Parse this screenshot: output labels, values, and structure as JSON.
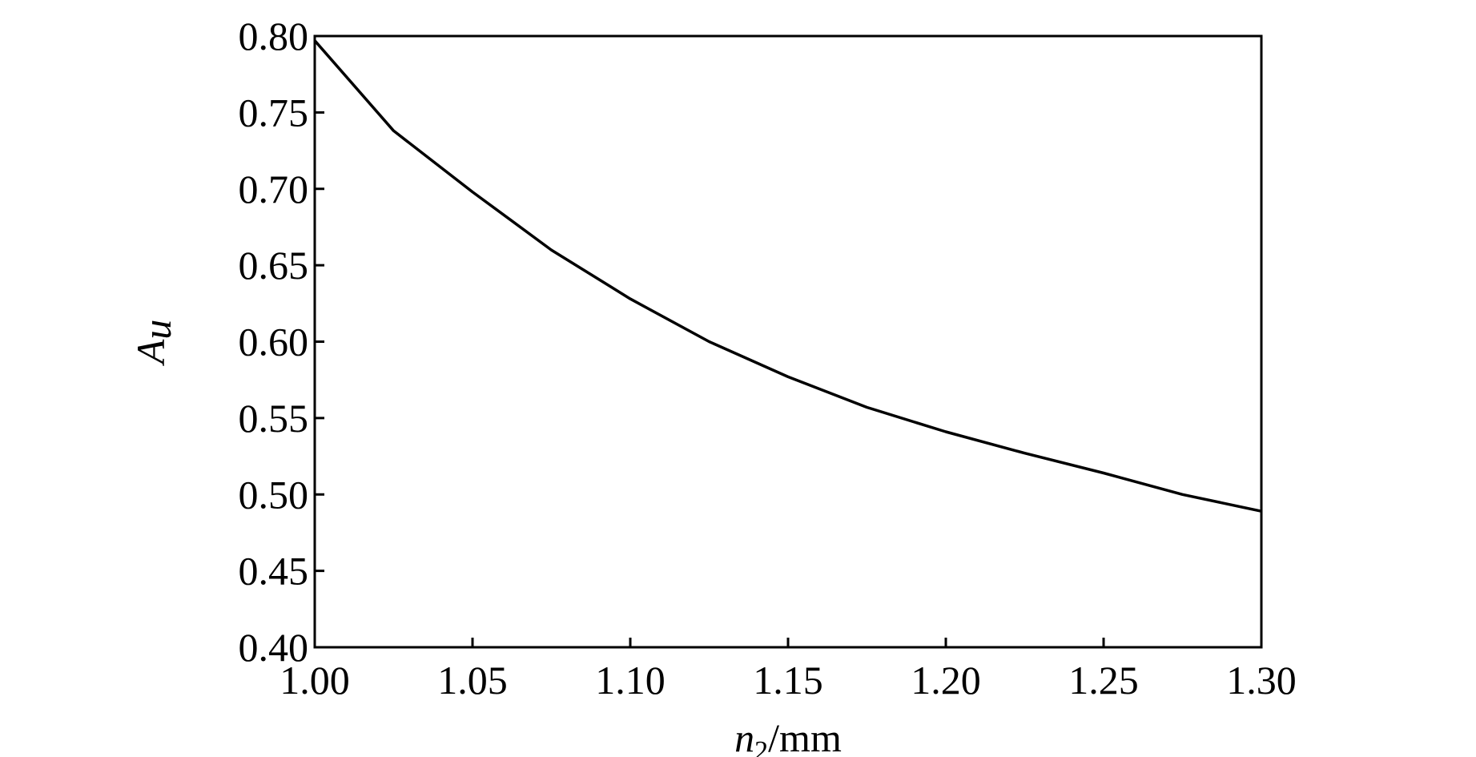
{
  "chart_data": {
    "type": "line",
    "title": "",
    "xlabel": {
      "var": "n",
      "sub": "2",
      "unit": "/mm"
    },
    "ylabel": {
      "var": "A",
      "sub": "u"
    },
    "xlim": [
      1.0,
      1.3
    ],
    "ylim": [
      0.4,
      0.8
    ],
    "xticks": [
      1.0,
      1.05,
      1.1,
      1.15,
      1.2,
      1.25,
      1.3
    ],
    "xtick_labels": [
      "1.00",
      "1.05",
      "1.10",
      "1.15",
      "1.20",
      "1.25",
      "1.30"
    ],
    "yticks": [
      0.4,
      0.45,
      0.5,
      0.55,
      0.6,
      0.65,
      0.7,
      0.75,
      0.8
    ],
    "ytick_labels": [
      "0.40",
      "0.45",
      "0.50",
      "0.55",
      "0.60",
      "0.65",
      "0.70",
      "0.75",
      "0.80"
    ],
    "grid": false,
    "legend": "none",
    "series": [
      {
        "color": "#000000",
        "x": [
          1.0,
          1.025,
          1.05,
          1.075,
          1.1,
          1.125,
          1.15,
          1.175,
          1.2,
          1.225,
          1.25,
          1.275,
          1.3
        ],
        "y": [
          0.797,
          0.738,
          0.698,
          0.66,
          0.628,
          0.6,
          0.577,
          0.557,
          0.541,
          0.527,
          0.514,
          0.5,
          0.489
        ]
      }
    ]
  }
}
